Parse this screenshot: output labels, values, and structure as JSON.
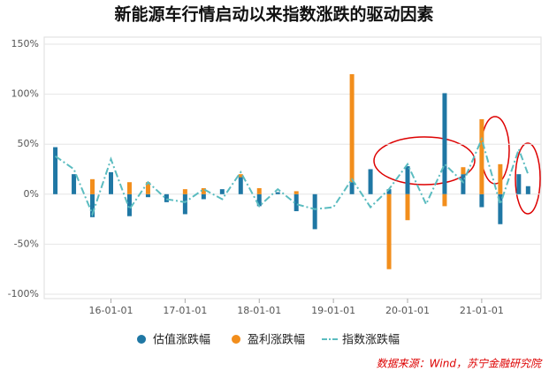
{
  "chart_data": {
    "type": "stacked-bar-line",
    "title": "新能源车行情启动以来指数涨跌的驱动因素",
    "source": "数据来源：Wind，苏宁金融研究院",
    "x": [
      0,
      1,
      2,
      3,
      4,
      5,
      6,
      7,
      8,
      9,
      10,
      11,
      12,
      13,
      14,
      15,
      16,
      17,
      18,
      19,
      20,
      21,
      22,
      23,
      24,
      25,
      25.5
    ],
    "xlim": [
      -0.6,
      26.2
    ],
    "xticks": [
      {
        "value": 3,
        "label": "16-01-01"
      },
      {
        "value": 7,
        "label": "17-01-01"
      },
      {
        "value": 11,
        "label": "18-01-01"
      },
      {
        "value": 15,
        "label": "19-01-01"
      },
      {
        "value": 19,
        "label": "20-01-01"
      },
      {
        "value": 23,
        "label": "21-01-01"
      }
    ],
    "ylim": [
      -100,
      150
    ],
    "yticks": [
      {
        "value": -100,
        "label": "-100%"
      },
      {
        "value": -50,
        "label": "-50%"
      },
      {
        "value": 0,
        "label": "0%"
      },
      {
        "value": 50,
        "label": "50%"
      },
      {
        "value": 100,
        "label": "100%"
      },
      {
        "value": 150,
        "label": "150%"
      }
    ],
    "grid": true,
    "legend": "bottom",
    "series": [
      {
        "name": "估值涨跌幅",
        "kind": "bar",
        "color": "#1f77a4",
        "values": [
          47,
          20,
          -23,
          22,
          -22,
          -3,
          -8,
          -20,
          -5,
          5,
          17,
          -12,
          2,
          -17,
          -35,
          0,
          12,
          25,
          5,
          28,
          0,
          101,
          20,
          -13,
          -30,
          20,
          8
        ]
      },
      {
        "name": "盈利涨跌幅",
        "kind": "bar",
        "color": "#f28e1c",
        "values": [
          0,
          0,
          15,
          0,
          12,
          12,
          0,
          5,
          6,
          0,
          3,
          6,
          0,
          3,
          0,
          0,
          108,
          0,
          -75,
          -26,
          0,
          -12,
          7,
          75,
          30,
          0,
          0
        ]
      },
      {
        "name": "指数涨跌幅",
        "kind": "line",
        "color": "#5bbcc0",
        "values": [
          38,
          25,
          -20,
          35,
          -15,
          12,
          -5,
          -8,
          5,
          -5,
          22,
          -12,
          5,
          -10,
          -15,
          -13,
          15,
          -13,
          5,
          30,
          -10,
          30,
          12,
          55,
          -10,
          45,
          20
        ]
      }
    ]
  }
}
